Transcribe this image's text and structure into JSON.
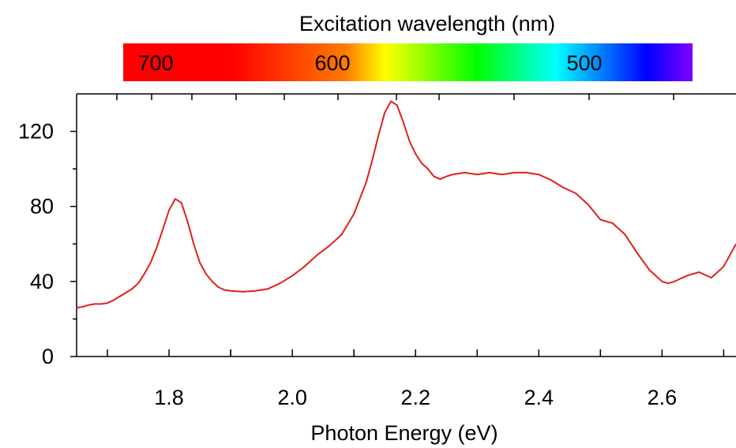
{
  "chart_data": {
    "type": "line",
    "title": "",
    "xlabel": "Photon Energy (eV)",
    "ylabel": "",
    "xlim": [
      1.65,
      2.72
    ],
    "ylim": [
      0,
      140
    ],
    "grid": false,
    "x_ticks": [
      "1.8",
      "2.0",
      "2.2",
      "2.4",
      "2.6"
    ],
    "y_ticks": [
      "0",
      "40",
      "80",
      "120"
    ],
    "top_axis": {
      "label": "Excitation wavelength (nm)",
      "tick_labels": [
        "700",
        "600",
        "500"
      ],
      "colorbar": [
        "#ff0000",
        "#ff7a00",
        "#ffff00",
        "#00ff00",
        "#00ffff",
        "#0000ff",
        "#7f00ff"
      ]
    },
    "series": [
      {
        "name": "",
        "color": "#e0201c",
        "x": [
          1.65,
          1.66,
          1.67,
          1.68,
          1.69,
          1.7,
          1.71,
          1.72,
          1.73,
          1.74,
          1.75,
          1.76,
          1.77,
          1.78,
          1.79,
          1.8,
          1.81,
          1.82,
          1.83,
          1.84,
          1.85,
          1.86,
          1.87,
          1.88,
          1.89,
          1.9,
          1.92,
          1.94,
          1.96,
          1.98,
          2.0,
          2.02,
          2.04,
          2.06,
          2.08,
          2.1,
          2.12,
          2.13,
          2.14,
          2.15,
          2.16,
          2.17,
          2.18,
          2.19,
          2.2,
          2.21,
          2.22,
          2.23,
          2.24,
          2.25,
          2.26,
          2.28,
          2.3,
          2.32,
          2.34,
          2.36,
          2.38,
          2.4,
          2.42,
          2.44,
          2.46,
          2.48,
          2.5,
          2.52,
          2.54,
          2.56,
          2.58,
          2.6,
          2.61,
          2.62,
          2.64,
          2.66,
          2.68,
          2.7,
          2.72
        ],
        "y": [
          26,
          26.5,
          27.5,
          28,
          28,
          28.5,
          30,
          32,
          34,
          36,
          39,
          44,
          50,
          58,
          68,
          78,
          84,
          82,
          72,
          60,
          50,
          44,
          40,
          37,
          35.5,
          35,
          34.5,
          35,
          36,
          39,
          43,
          48,
          54,
          59,
          65,
          76,
          93,
          105,
          118,
          130,
          136,
          134,
          125,
          115,
          108,
          103,
          100,
          96,
          94.5,
          96,
          97,
          98,
          97,
          98,
          97,
          98,
          98,
          97,
          94,
          90,
          87,
          81,
          73,
          71,
          65,
          55,
          46,
          40,
          39,
          40,
          43,
          45,
          42,
          48,
          60
        ]
      }
    ]
  }
}
